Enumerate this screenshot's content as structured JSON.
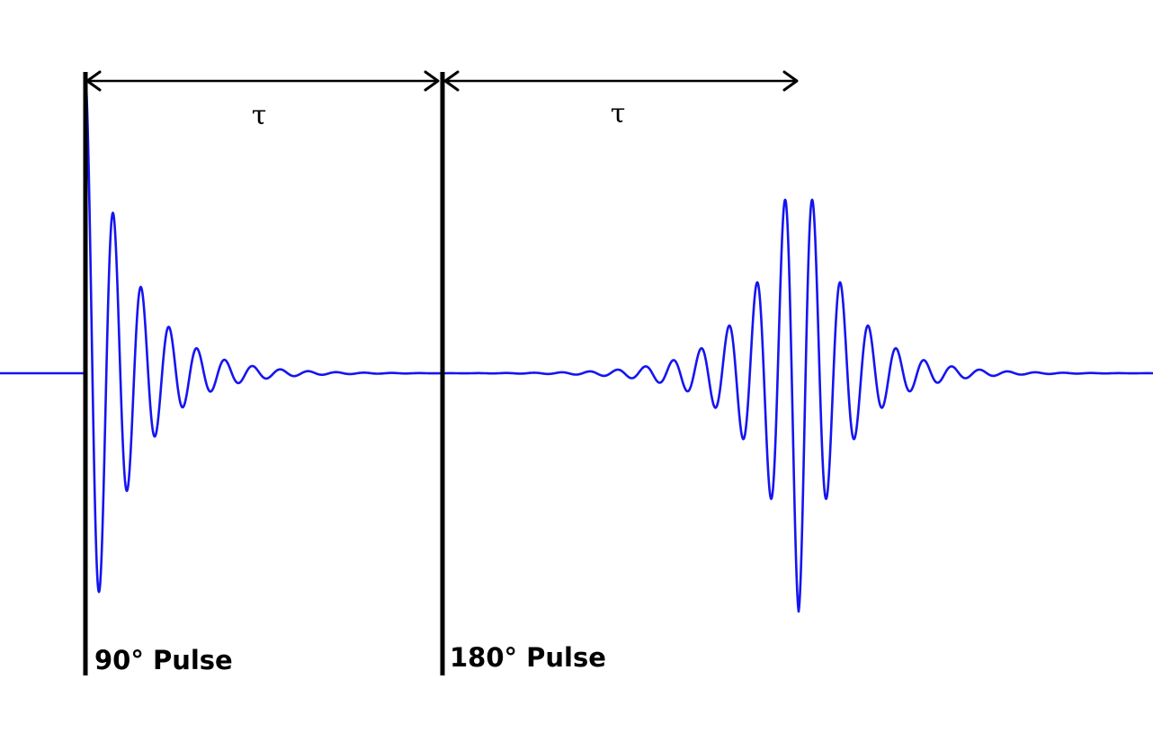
{
  "colors": {
    "signal": "#1515f0",
    "line": "#000000",
    "background": "#ffffff"
  },
  "pulses": [
    {
      "label": "90° Pulse"
    },
    {
      "label": "180° Pulse"
    }
  ],
  "intervals": [
    {
      "label": "τ"
    },
    {
      "label": "τ"
    }
  ]
}
